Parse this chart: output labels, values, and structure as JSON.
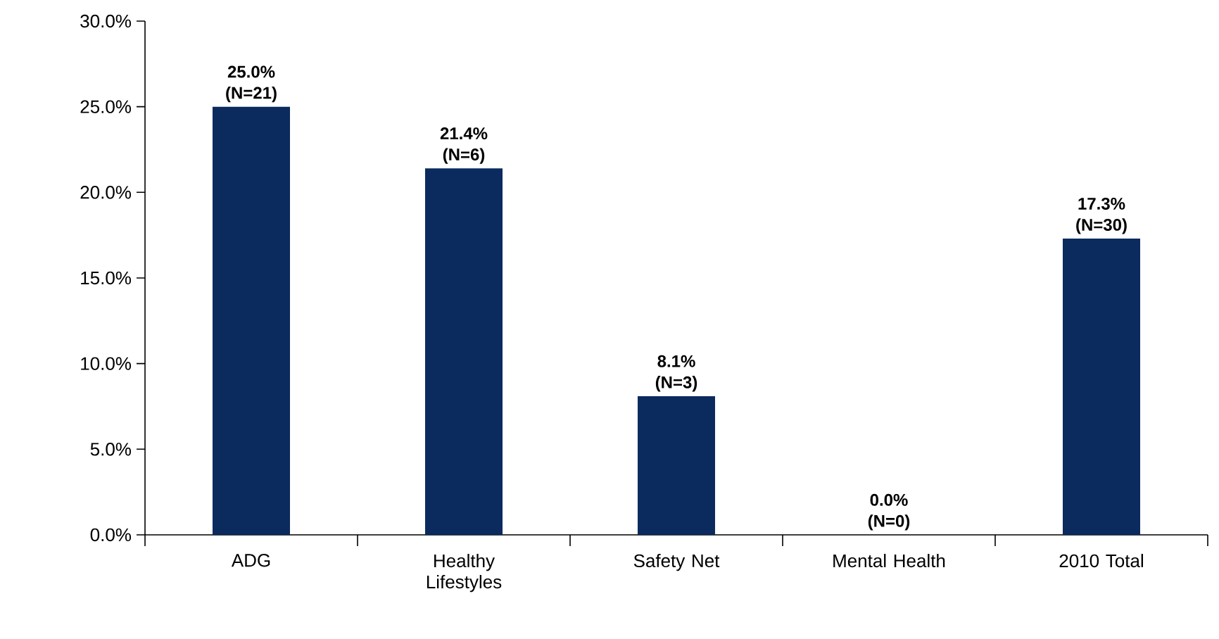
{
  "chart_data": {
    "type": "bar",
    "categories": [
      "ADG",
      "Healthy Lifestyles",
      "Safety Net",
      "Mental Health",
      "2010 Total"
    ],
    "values": [
      25.0,
      21.4,
      8.1,
      0.0,
      17.3
    ],
    "value_labels": [
      "25.0% (N=21)",
      "21.4% (N=6)",
      "8.1% (N=3)",
      "0.0% (N=0)",
      "17.3% (N=30)"
    ],
    "color": "#0b2a5e",
    "ylim": [
      0,
      30
    ],
    "yticks": [
      {
        "value": 0,
        "label": "0.0%"
      },
      {
        "value": 5,
        "label": "5.0%"
      },
      {
        "value": 10,
        "label": "10.0%"
      },
      {
        "value": 15,
        "label": "15.0%"
      },
      {
        "value": 20,
        "label": "20.0%"
      },
      {
        "value": 25,
        "label": "25.0%"
      },
      {
        "value": 30,
        "label": "30.0%"
      }
    ],
    "grid": false
  }
}
